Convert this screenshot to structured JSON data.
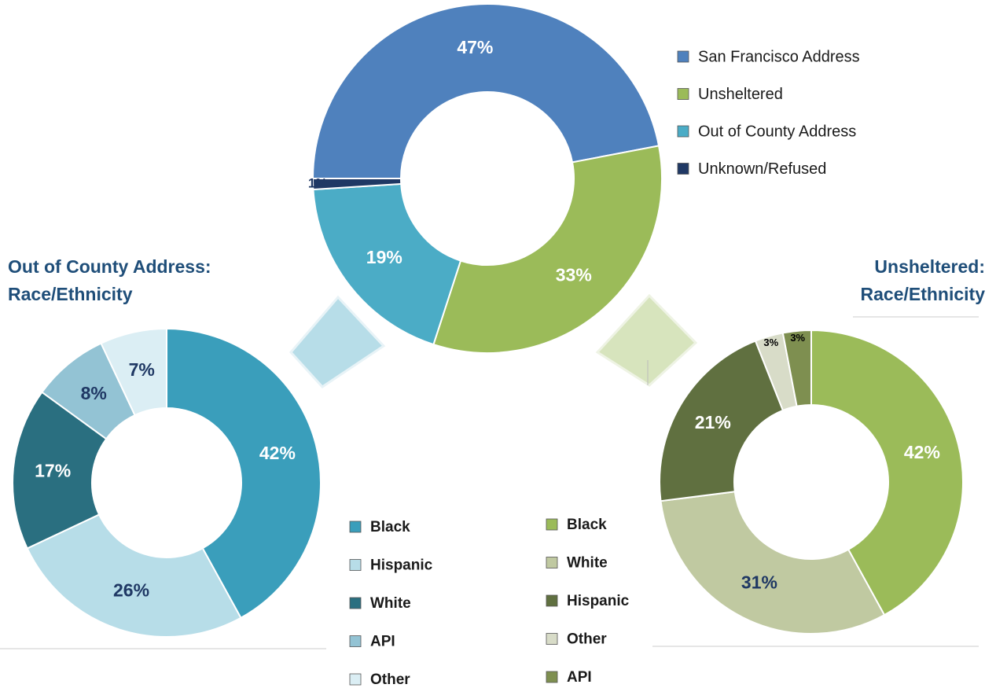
{
  "chart_data": [
    {
      "type": "donut",
      "categories": [
        "San Francisco Address",
        "Unsheltered",
        "Out of County Address",
        "Unknown/Refused"
      ],
      "values": [
        47,
        33,
        19,
        1
      ],
      "value_labels": [
        "47%",
        "33%",
        "19%",
        "1%"
      ],
      "colors": [
        "#4f81bd",
        "#9bbb59",
        "#4bacc6",
        "#1f3864"
      ],
      "label_colors": [
        "#ffffff",
        "#ffffff",
        "#ffffff",
        "#1f3864"
      ]
    },
    {
      "type": "donut",
      "title": "Out of County Address: Race/Ethnicity",
      "categories": [
        "Black",
        "Hispanic",
        "White",
        "API",
        "Other"
      ],
      "values": [
        42,
        26,
        17,
        8,
        7
      ],
      "value_labels": [
        "42%",
        "26%",
        "17%",
        "8%",
        "7%"
      ],
      "colors": [
        "#3a9ebb",
        "#b7dde8",
        "#2a6f80",
        "#93c3d4",
        "#dbeef4"
      ],
      "label_colors": [
        "#ffffff",
        "#1f3864",
        "#ffffff",
        "#1f3864",
        "#1f3864"
      ]
    },
    {
      "type": "donut",
      "title": "Unsheltered: Race/Ethnicity",
      "categories": [
        "Black",
        "White",
        "Hispanic",
        "Other",
        "API"
      ],
      "values": [
        42,
        31,
        21,
        3,
        3
      ],
      "value_labels": [
        "42%",
        "31%",
        "21%",
        "3%",
        "3%"
      ],
      "colors": [
        "#9bbb59",
        "#c0c9a1",
        "#607040",
        "#d8dcc8",
        "#7e8f50"
      ],
      "label_colors": [
        "#ffffff",
        "#1f3864",
        "#ffffff",
        "#000000",
        "#000000"
      ]
    }
  ]
}
